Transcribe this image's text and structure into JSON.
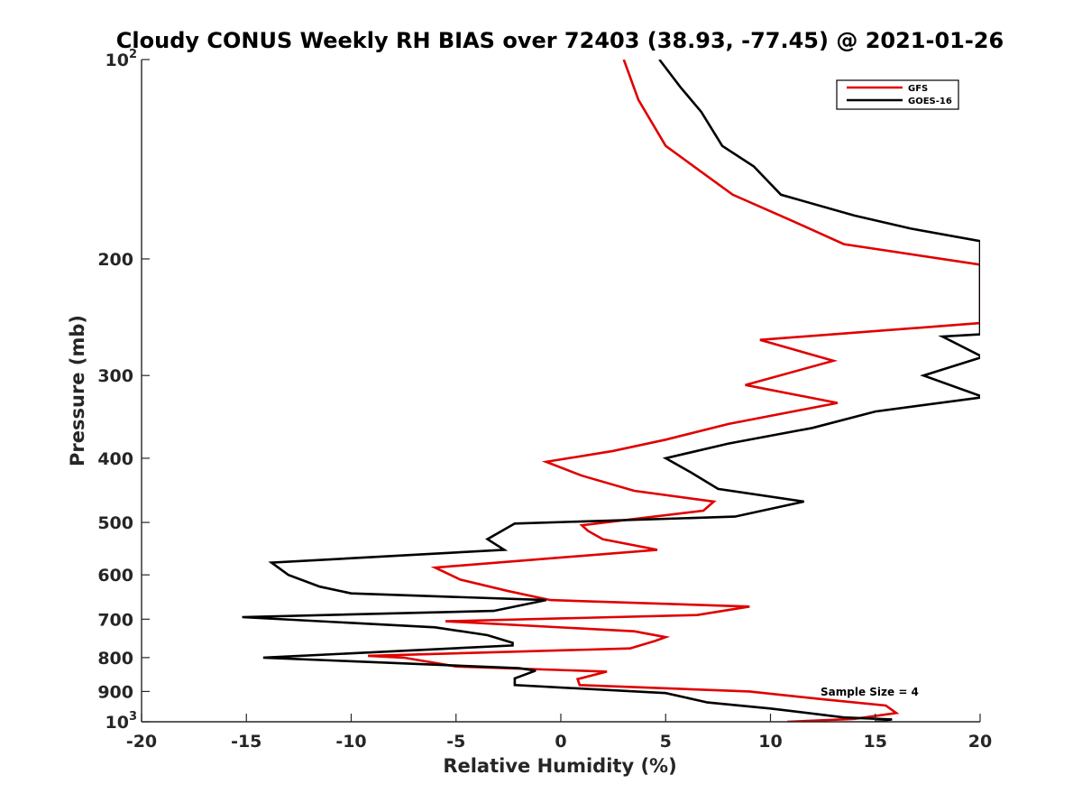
{
  "chart_data": {
    "type": "line",
    "title": "Cloudy CONUS Weekly RH BIAS over 72403 (38.93, -77.45) @ 2021-01-26",
    "xlabel": "Relative Humidity (%)",
    "ylabel": "Pressure (mb)",
    "xlim": [
      -20,
      20
    ],
    "ylim": [
      100,
      1000
    ],
    "yscale": "log",
    "y_reversed": true,
    "grid": false,
    "legend_placement": "top-right",
    "x_ticks": [
      "-20",
      "-15",
      "-10",
      "-5",
      "0",
      "5",
      "10",
      "15",
      "20"
    ],
    "y_ticks": [
      {
        "value": 100,
        "base": "10",
        "exp": "2"
      },
      {
        "value": 200,
        "label": "200"
      },
      {
        "value": 300,
        "label": "300"
      },
      {
        "value": 400,
        "label": "400"
      },
      {
        "value": 500,
        "label": "500"
      },
      {
        "value": 600,
        "label": "600"
      },
      {
        "value": 700,
        "label": "700"
      },
      {
        "value": 800,
        "label": "800"
      },
      {
        "value": 900,
        "label": "900"
      },
      {
        "value": 1000,
        "base": "10",
        "exp": "3"
      }
    ],
    "annotation": "Sample Size = 4",
    "series": [
      {
        "name": "GFS",
        "color": "#e00000",
        "points": [
          [
            3.0,
            100
          ],
          [
            3.7,
            115
          ],
          [
            5.0,
            135
          ],
          [
            8.2,
            160
          ],
          [
            11.0,
            175
          ],
          [
            13.5,
            190
          ],
          [
            20.0,
            204
          ],
          [
            20.0,
            250
          ],
          [
            9.5,
            265
          ],
          [
            13.0,
            285
          ],
          [
            8.8,
            310
          ],
          [
            13.2,
            330
          ],
          [
            8.0,
            355
          ],
          [
            5.0,
            375
          ],
          [
            2.5,
            390
          ],
          [
            -0.7,
            405
          ],
          [
            1.0,
            425
          ],
          [
            3.5,
            448
          ],
          [
            7.3,
            465
          ],
          [
            6.8,
            480
          ],
          [
            1.0,
            505
          ],
          [
            1.3,
            515
          ],
          [
            2.0,
            530
          ],
          [
            4.6,
            550
          ],
          [
            -6.0,
            585
          ],
          [
            -4.8,
            610
          ],
          [
            -2.5,
            635
          ],
          [
            -0.5,
            655
          ],
          [
            9.0,
            670
          ],
          [
            6.5,
            690
          ],
          [
            -5.5,
            705
          ],
          [
            3.5,
            730
          ],
          [
            5.0,
            745
          ],
          [
            4.5,
            755
          ],
          [
            3.3,
            775
          ],
          [
            -9.2,
            795
          ],
          [
            -7.5,
            800
          ],
          [
            -5.0,
            825
          ],
          [
            2.2,
            840
          ],
          [
            0.8,
            862
          ],
          [
            0.9,
            880
          ],
          [
            9.0,
            900
          ],
          [
            12.5,
            925
          ],
          [
            15.5,
            945
          ],
          [
            16.0,
            970
          ],
          [
            14.0,
            990
          ],
          [
            10.8,
            1000
          ]
        ]
      },
      {
        "name": "GOES-16",
        "color": "#000000",
        "points": [
          [
            4.7,
            100
          ],
          [
            5.7,
            110
          ],
          [
            6.7,
            120
          ],
          [
            7.7,
            135
          ],
          [
            9.2,
            145
          ],
          [
            10.5,
            160
          ],
          [
            14.0,
            172
          ],
          [
            16.7,
            180
          ],
          [
            20.0,
            188
          ],
          [
            20.0,
            260
          ],
          [
            18.2,
            262
          ],
          [
            20.0,
            280
          ],
          [
            20.0,
            282
          ],
          [
            17.3,
            300
          ],
          [
            20.0,
            322
          ],
          [
            20.0,
            324
          ],
          [
            15.0,
            340
          ],
          [
            12.0,
            360
          ],
          [
            8.0,
            380
          ],
          [
            5.0,
            400
          ],
          [
            6.2,
            420
          ],
          [
            7.5,
            445
          ],
          [
            11.6,
            465
          ],
          [
            8.3,
            490
          ],
          [
            -2.2,
            502
          ],
          [
            -3.5,
            530
          ],
          [
            -2.7,
            550
          ],
          [
            -13.8,
            575
          ],
          [
            -13.0,
            600
          ],
          [
            -11.5,
            625
          ],
          [
            -10.0,
            640
          ],
          [
            -0.7,
            655
          ],
          [
            -3.2,
            680
          ],
          [
            -15.2,
            695
          ],
          [
            -6.0,
            720
          ],
          [
            -3.5,
            740
          ],
          [
            -2.3,
            760
          ],
          [
            -2.3,
            767
          ],
          [
            -14.2,
            800
          ],
          [
            -2.0,
            830
          ],
          [
            -1.2,
            837
          ],
          [
            -2.2,
            860
          ],
          [
            -2.2,
            880
          ],
          [
            5.0,
            905
          ],
          [
            7.0,
            935
          ],
          [
            10.0,
            955
          ],
          [
            13.5,
            985
          ],
          [
            15.8,
            992
          ],
          [
            15.0,
            1000
          ]
        ]
      }
    ]
  }
}
